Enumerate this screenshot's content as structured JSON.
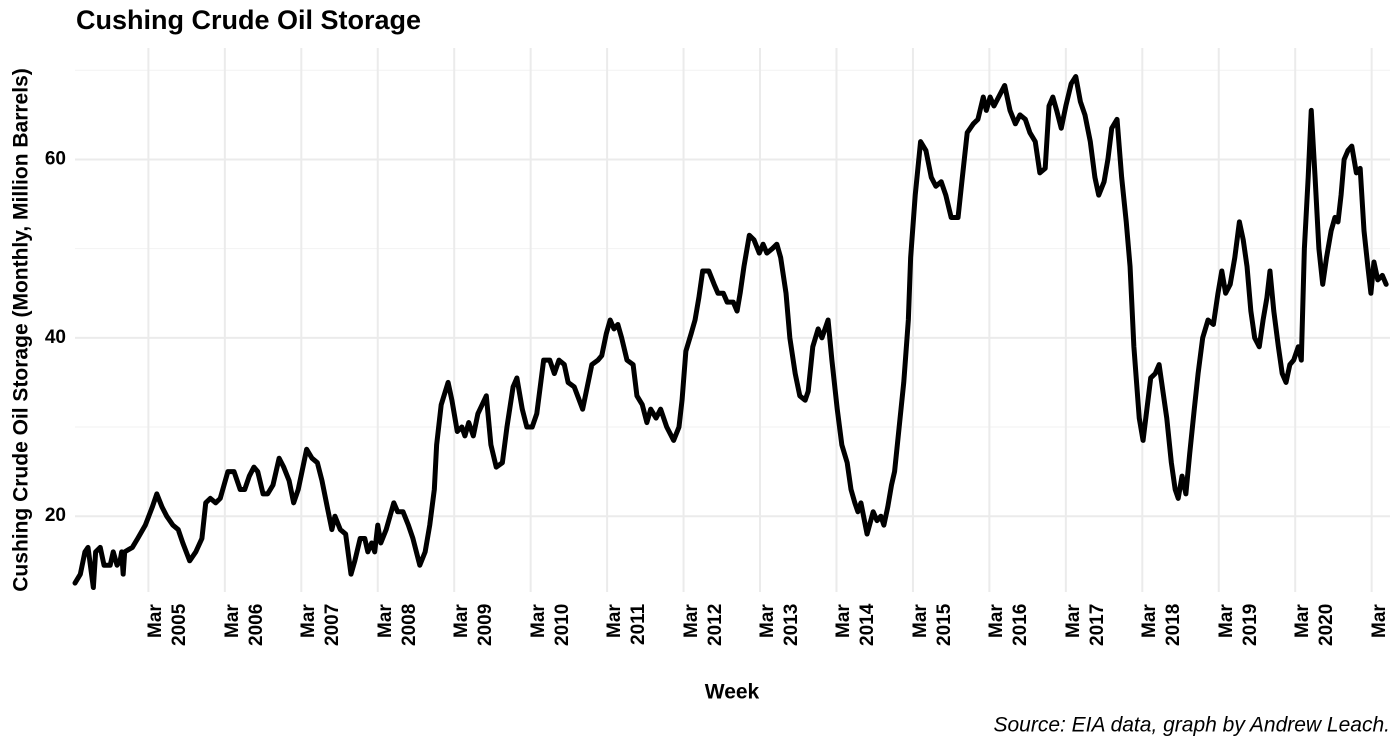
{
  "chart_data": {
    "type": "line",
    "title": "Cushing Crude Oil Storage",
    "xlabel": "Week",
    "ylabel": "Cushing Crude Oil Storage (Monthly, Million Barrels)",
    "caption": "Source: EIA data, graph by Andrew Leach.",
    "color": "#000000",
    "xlim": [
      2004.2,
      2021.4
    ],
    "ylim": [
      11.5,
      72.5
    ],
    "yticks": [
      20,
      40,
      60
    ],
    "yminor": [
      30,
      50,
      70
    ],
    "grid": true,
    "xticks": [
      {
        "value": 2005.16,
        "label": "Mar 2005"
      },
      {
        "value": 2006.16,
        "label": "Mar 2006"
      },
      {
        "value": 2007.16,
        "label": "Mar 2007"
      },
      {
        "value": 2008.16,
        "label": "Mar 2008"
      },
      {
        "value": 2009.16,
        "label": "Mar 2009"
      },
      {
        "value": 2010.16,
        "label": "Mar 2010"
      },
      {
        "value": 2011.16,
        "label": "Mar 2011"
      },
      {
        "value": 2012.16,
        "label": "Mar 2012"
      },
      {
        "value": 2013.16,
        "label": "Mar 2013"
      },
      {
        "value": 2014.16,
        "label": "Mar 2014"
      },
      {
        "value": 2015.16,
        "label": "Mar 2015"
      },
      {
        "value": 2016.16,
        "label": "Mar 2016"
      },
      {
        "value": 2017.16,
        "label": "Mar 2017"
      },
      {
        "value": 2018.16,
        "label": "Mar 2018"
      },
      {
        "value": 2019.16,
        "label": "Mar 2019"
      },
      {
        "value": 2020.16,
        "label": "Mar 2020"
      },
      {
        "value": 2021.16,
        "label": "Mar"
      }
    ],
    "x": [
      2004.2,
      2004.27,
      2004.33,
      2004.37,
      2004.44,
      2004.47,
      2004.53,
      2004.58,
      2004.66,
      2004.7,
      2004.75,
      2004.79,
      2004.81,
      2004.83,
      2004.85,
      2004.95,
      2005.02,
      2005.12,
      2005.21,
      2005.27,
      2005.34,
      2005.4,
      2005.48,
      2005.55,
      2005.61,
      2005.7,
      2005.78,
      2005.86,
      2005.91,
      2005.97,
      2006.04,
      2006.1,
      2006.15,
      2006.2,
      2006.28,
      2006.36,
      2006.42,
      2006.48,
      2006.54,
      2006.59,
      2006.66,
      2006.72,
      2006.79,
      2006.87,
      2006.93,
      2007.0,
      2007.06,
      2007.12,
      2007.23,
      2007.3,
      2007.37,
      2007.43,
      2007.5,
      2007.56,
      2007.6,
      2007.67,
      2007.74,
      2007.81,
      2007.86,
      2007.93,
      2007.99,
      2008.03,
      2008.08,
      2008.12,
      2008.16,
      2008.2,
      2008.27,
      2008.37,
      2008.42,
      2008.49,
      2008.56,
      2008.62,
      2008.71,
      2008.78,
      2008.84,
      2008.9,
      2008.93,
      2008.99,
      2009.08,
      2009.13,
      2009.2,
      2009.26,
      2009.3,
      2009.35,
      2009.41,
      2009.47,
      2009.58,
      2009.64,
      2009.71,
      2009.79,
      2009.85,
      2009.93,
      2009.98,
      2010.05,
      2010.11,
      2010.18,
      2010.24,
      2010.33,
      2010.41,
      2010.47,
      2010.53,
      2010.6,
      2010.65,
      2010.73,
      2010.84,
      2010.9,
      2010.96,
      2011.04,
      2011.09,
      2011.15,
      2011.2,
      2011.25,
      2011.3,
      2011.35,
      2011.42,
      2011.5,
      2011.55,
      2011.62,
      2011.68,
      2011.73,
      2011.8,
      2011.86,
      2011.94,
      2012.03,
      2012.1,
      2012.14,
      2012.19,
      2012.26,
      2012.31,
      2012.36,
      2012.41,
      2012.49,
      2012.56,
      2012.61,
      2012.68,
      2012.73,
      2012.81,
      2012.86,
      2012.9,
      2012.95,
      2013.02,
      2013.08,
      2013.15,
      2013.2,
      2013.25,
      2013.32,
      2013.38,
      2013.43,
      2013.5,
      2013.55,
      2013.62,
      2013.68,
      2013.75,
      2013.79,
      2013.85,
      2013.92,
      2013.97,
      2014.05,
      2014.1,
      2014.17,
      2014.23,
      2014.3,
      2014.35,
      2014.4,
      2014.44,
      2014.48,
      2014.56,
      2014.64,
      2014.69,
      2014.74,
      2014.78,
      2014.83,
      2014.88,
      2014.92,
      2014.98,
      2015.04,
      2015.1,
      2015.13,
      2015.19,
      2015.26,
      2015.33,
      2015.4,
      2015.46,
      2015.53,
      2015.59,
      2015.66,
      2015.75,
      2015.8,
      2015.87,
      2015.95,
      2016.01,
      2016.08,
      2016.12,
      2016.17,
      2016.22,
      2016.36,
      2016.43,
      2016.5,
      2016.56,
      2016.63,
      2016.69,
      2016.76,
      2016.82,
      2016.89,
      2016.94,
      2016.99,
      2017.04,
      2017.1,
      2017.16,
      2017.23,
      2017.29,
      2017.35,
      2017.41,
      2017.48,
      2017.54,
      2017.59,
      2017.66,
      2017.71,
      2017.76,
      2017.83,
      2017.89,
      2017.95,
      2018.0,
      2018.05,
      2018.12,
      2018.17,
      2018.22,
      2018.27,
      2018.33,
      2018.38,
      2018.43,
      2018.48,
      2018.54,
      2018.59,
      2018.63,
      2018.68,
      2018.73,
      2018.78,
      2018.84,
      2018.89,
      2018.95,
      2019.02,
      2019.09,
      2019.15,
      2019.2,
      2019.25,
      2019.31,
      2019.37,
      2019.43,
      2019.48,
      2019.53,
      2019.58,
      2019.63,
      2019.69,
      2019.74,
      2019.79,
      2019.83,
      2019.88,
      2019.94,
      2019.99,
      2020.04,
      2020.09,
      2020.14,
      2020.2,
      2020.24,
      2020.28,
      2020.33,
      2020.37,
      2020.42,
      2020.47,
      2020.52,
      2020.57,
      2020.63,
      2020.68,
      2020.72,
      2020.76,
      2020.8,
      2020.85,
      2020.9,
      2020.96,
      2021.01,
      2021.06,
      2021.11,
      2021.15,
      2021.19,
      2021.24,
      2021.3,
      2021.35
    ],
    "values": [
      12.5,
      13.5,
      16,
      16.5,
      12,
      16,
      16.5,
      14.5,
      14.5,
      16,
      14.5,
      15,
      16,
      13.5,
      16,
      16.5,
      17.5,
      19,
      21,
      22.5,
      21,
      20,
      19,
      18.5,
      17,
      15,
      16,
      17.5,
      21.5,
      22,
      21.5,
      22,
      23.5,
      25,
      25,
      23,
      23,
      24.5,
      25.5,
      25,
      22.5,
      22.5,
      23.5,
      26.5,
      25.5,
      24,
      21.5,
      23,
      27.5,
      26.5,
      26,
      24,
      21,
      18.5,
      20,
      18.5,
      18,
      13.5,
      15,
      17.5,
      17.5,
      16,
      17,
      16,
      19,
      17,
      18.5,
      21.5,
      20.5,
      20.5,
      19,
      17.5,
      14.5,
      16,
      19,
      23,
      28,
      32.5,
      35,
      33,
      29.5,
      30,
      29,
      30.5,
      29,
      31.5,
      33.5,
      28,
      25.5,
      26,
      30,
      34.5,
      35.5,
      32,
      30,
      30,
      31.5,
      37.5,
      37.5,
      36,
      37.5,
      37,
      35,
      34.5,
      32,
      34.5,
      37,
      37.5,
      38,
      40.5,
      42,
      41,
      41.5,
      40,
      37.5,
      37,
      33.5,
      32.5,
      30.5,
      32,
      31,
      32,
      30,
      28.5,
      30,
      33,
      38.5,
      40.5,
      42,
      44.5,
      47.5,
      47.5,
      46,
      45,
      45,
      44,
      44,
      43,
      45,
      48,
      51.5,
      51,
      49.5,
      50.5,
      49.5,
      50,
      50.5,
      49,
      45,
      40,
      36,
      33.5,
      33,
      34,
      39,
      41,
      40,
      42,
      37.5,
      32,
      28,
      26,
      23,
      21.5,
      20.5,
      21.5,
      18,
      20.5,
      19.5,
      20,
      19,
      21,
      23.5,
      25,
      30,
      35,
      42,
      49,
      56,
      62,
      61,
      58,
      57,
      57.5,
      56,
      53.5,
      53.5,
      57.5,
      63,
      64,
      64.5,
      67,
      65.5,
      67,
      66,
      68.3,
      65.5,
      64,
      65,
      64.5,
      63,
      62,
      58.5,
      59,
      66,
      67,
      65.5,
      63.5,
      66,
      68.5,
      69.3,
      66.5,
      65,
      62,
      58,
      56,
      57.5,
      60,
      63.5,
      64.5,
      58,
      53,
      48,
      39,
      31,
      28.5,
      32,
      35.5,
      36,
      37,
      34,
      31,
      26,
      23,
      22,
      24.5,
      22.5,
      27,
      32,
      36,
      40,
      42,
      41.5,
      45,
      47.5,
      45,
      46,
      49,
      53,
      51,
      48,
      43,
      40,
      39,
      42,
      44.5,
      47.5,
      43,
      39,
      36,
      35,
      37,
      37.5,
      39,
      37.5,
      50,
      58,
      65.5,
      58,
      50,
      46,
      49,
      52,
      53.5,
      53,
      56,
      60,
      61,
      61.5,
      58.5,
      59,
      52,
      48,
      45,
      48.5,
      46.5,
      47,
      46
    ]
  }
}
